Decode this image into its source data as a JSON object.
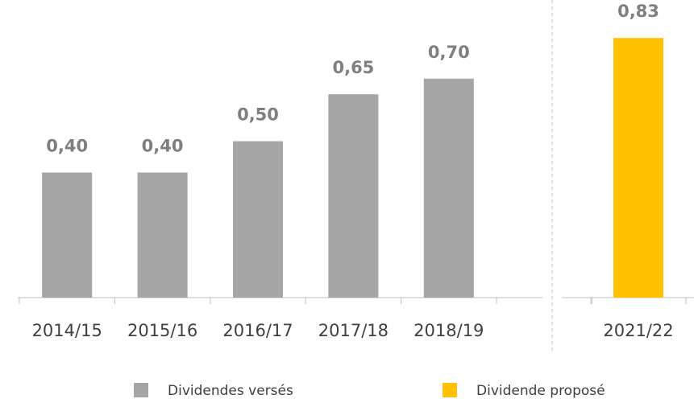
{
  "chart_data": {
    "type": "bar",
    "categories": [
      "2014/15",
      "2015/16",
      "2016/17",
      "2017/18",
      "2018/19",
      null,
      "2021/22"
    ],
    "series": [
      {
        "name": "Dividendes versés",
        "color": "#a5a5a5",
        "values": [
          0.4,
          0.4,
          0.5,
          0.65,
          0.7,
          null,
          null
        ],
        "value_labels": [
          "0,40",
          "0,40",
          "0,50",
          "0,65",
          "0,70",
          null,
          null
        ]
      },
      {
        "name": "Dividende proposé",
        "color": "#ffc000",
        "values": [
          null,
          null,
          null,
          null,
          null,
          null,
          0.83
        ],
        "value_labels": [
          null,
          null,
          null,
          null,
          null,
          null,
          "0,83"
        ]
      }
    ],
    "ylim": [
      0,
      0.9
    ]
  }
}
